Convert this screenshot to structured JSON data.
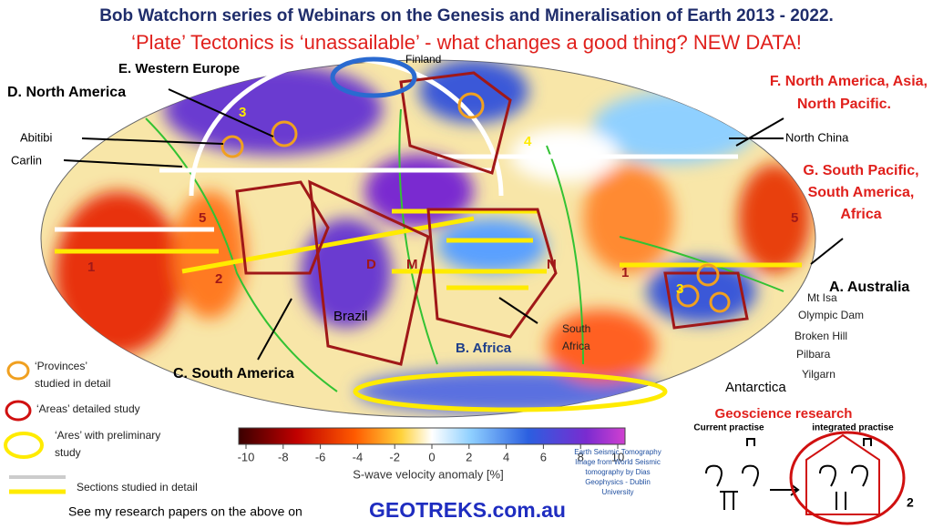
{
  "header": {
    "title": "Bob Watchorn series of Webinars on the Genesis and Mineralisation of Earth 2013 - 2022.",
    "subtitle": "‘Plate’ Tectonics is ‘unassailable’ - what changes a good thing? NEW DATA!"
  },
  "map_labels": {
    "western_europe": "E. Western Europe",
    "finland": "Finland",
    "north_america": "D. North America",
    "asia": [
      "F. North America, Asia,",
      "North Pacific."
    ],
    "abitibi": "Abitibi",
    "carlin": "Carlin",
    "north_china": "North China",
    "south_pacific": [
      "G. South Pacific,",
      "South America,",
      "Africa"
    ],
    "australia": "A. Australia",
    "mt_isa": "Mt Isa",
    "olympic_dam": "Olympic Dam",
    "broken_hill": "Broken Hill",
    "pilbara": "Pilbara",
    "yilgarn": "Yilgarn",
    "brazil": "Brazil",
    "south_africa": [
      "South",
      "Africa"
    ],
    "africa": "B. Africa",
    "south_america": "C. South America",
    "antarctica": "Antarctica",
    "region_numbers": [
      "5",
      "5",
      "1",
      "2",
      "1",
      "3",
      "4",
      "3"
    ],
    "section_letters": [
      "D",
      "M",
      "N"
    ]
  },
  "legend": {
    "provinces": [
      "‘Provinces’",
      "studied in detail"
    ],
    "areas": "‘Areas’ detailed study",
    "ares": [
      "‘Ares’ with preliminary",
      "study"
    ],
    "sections": "Sections studied in detail"
  },
  "colorbar": {
    "range": [
      -10,
      10
    ],
    "ticks": [
      -10,
      -8,
      -6,
      -4,
      -2,
      0,
      2,
      4,
      6,
      8,
      10
    ],
    "label": "S-wave velocity anomaly [%]"
  },
  "credit": [
    "Earth Seismic Tomography",
    "Image from World Seismic",
    "tomography by Dias",
    "Geophysics - Dublin",
    "University"
  ],
  "footer": {
    "text": "See my research papers on the above on",
    "site": "GEOTREKS.com.au"
  },
  "research": {
    "title": "Geoscience research",
    "current": "Current practise",
    "integrated": "integrated practise",
    "page": "2"
  }
}
